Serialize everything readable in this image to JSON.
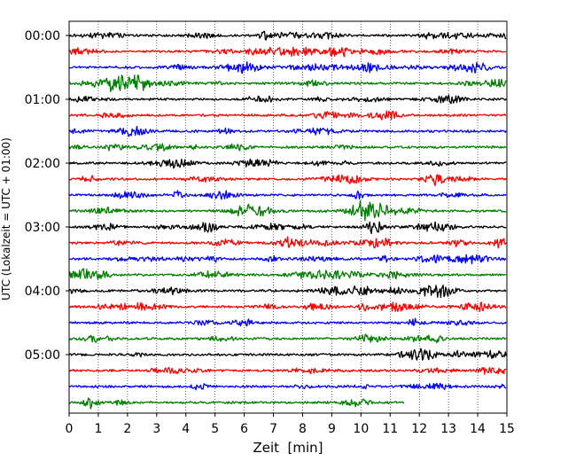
{
  "chart_data": {
    "type": "line",
    "title": "",
    "xlabel": "Zeit  [min]",
    "ylabel": "UTC (Lokalzeit = UTC + 01:00)",
    "xlim": [
      0,
      15
    ],
    "xticks": [
      0,
      1,
      2,
      3,
      4,
      5,
      6,
      7,
      8,
      9,
      10,
      11,
      12,
      13,
      14,
      15
    ],
    "grid": "x-dotted",
    "row_interval_minutes": 15,
    "y_tick_labels": [
      "00:00",
      "01:00",
      "02:00",
      "03:00",
      "04:00",
      "05:00"
    ],
    "trace_colors": [
      "#000000",
      "#ff0000",
      "#0000ff",
      "#007f00"
    ],
    "last_trace_end_min": 11.5,
    "rows": [
      {
        "start": "00:00",
        "color": "#000000",
        "end_min": 15
      },
      {
        "start": "00:15",
        "color": "#ff0000",
        "end_min": 15
      },
      {
        "start": "00:30",
        "color": "#0000ff",
        "end_min": 15
      },
      {
        "start": "00:45",
        "color": "#007f00",
        "end_min": 15
      },
      {
        "start": "01:00",
        "color": "#000000",
        "end_min": 15
      },
      {
        "start": "01:15",
        "color": "#ff0000",
        "end_min": 15
      },
      {
        "start": "01:30",
        "color": "#0000ff",
        "end_min": 15
      },
      {
        "start": "01:45",
        "color": "#007f00",
        "end_min": 15
      },
      {
        "start": "02:00",
        "color": "#000000",
        "end_min": 15
      },
      {
        "start": "02:15",
        "color": "#ff0000",
        "end_min": 15
      },
      {
        "start": "02:30",
        "color": "#0000ff",
        "end_min": 15
      },
      {
        "start": "02:45",
        "color": "#007f00",
        "end_min": 15
      },
      {
        "start": "03:00",
        "color": "#000000",
        "end_min": 15
      },
      {
        "start": "03:15",
        "color": "#ff0000",
        "end_min": 15
      },
      {
        "start": "03:30",
        "color": "#0000ff",
        "end_min": 15
      },
      {
        "start": "03:45",
        "color": "#007f00",
        "end_min": 15
      },
      {
        "start": "04:00",
        "color": "#000000",
        "end_min": 15
      },
      {
        "start": "04:15",
        "color": "#ff0000",
        "end_min": 15
      },
      {
        "start": "04:30",
        "color": "#0000ff",
        "end_min": 15
      },
      {
        "start": "04:45",
        "color": "#007f00",
        "end_min": 15
      },
      {
        "start": "05:00",
        "color": "#000000",
        "end_min": 15
      },
      {
        "start": "05:15",
        "color": "#ff0000",
        "end_min": 15
      },
      {
        "start": "05:30",
        "color": "#0000ff",
        "end_min": 15
      },
      {
        "start": "05:45",
        "color": "#007f00",
        "end_min": 11.5
      }
    ]
  }
}
